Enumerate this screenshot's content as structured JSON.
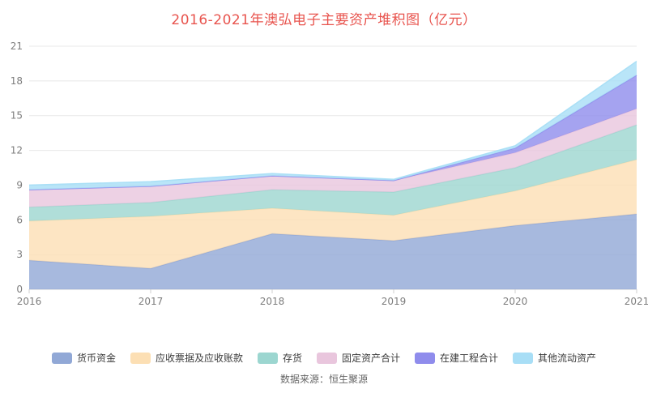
{
  "chart": {
    "title": "2016-2021年澳弘电子主要资产堆积图（亿元）",
    "title_color": "#e8544e",
    "source_note": "数据来源：恒生聚源"
  },
  "chart_data": {
    "type": "area",
    "stacked": true,
    "title": "2016-2021年澳弘电子主要资产堆积图（亿元）",
    "xlabel": "",
    "ylabel": "",
    "x": [
      "2016",
      "2017",
      "2018",
      "2019",
      "2020",
      "2021"
    ],
    "series": [
      {
        "name": "货币资金",
        "color": "#91a8d6",
        "values": [
          2.5,
          1.8,
          4.8,
          4.2,
          5.5,
          6.5
        ]
      },
      {
        "name": "应收票据及应收账款",
        "color": "#fcdfb4",
        "values": [
          3.4,
          4.5,
          2.2,
          2.2,
          3.0,
          4.7
        ]
      },
      {
        "name": "存货",
        "color": "#9cd6d0",
        "values": [
          1.2,
          1.2,
          1.6,
          2.0,
          2.0,
          3.0
        ]
      },
      {
        "name": "固定资产合计",
        "color": "#e9c6dd",
        "values": [
          1.5,
          1.4,
          1.2,
          1.0,
          1.3,
          1.4
        ]
      },
      {
        "name": "在建工程合计",
        "color": "#8f8cec",
        "values": [
          0.0,
          0.0,
          0.0,
          0.0,
          0.4,
          2.9
        ]
      },
      {
        "name": "其他流动资产",
        "color": "#a8def6",
        "values": [
          0.4,
          0.4,
          0.2,
          0.1,
          0.2,
          1.2
        ]
      }
    ],
    "ylim": [
      0,
      21
    ],
    "yticks": [
      0,
      3,
      6,
      9,
      12,
      15,
      18,
      21
    ],
    "grid": true,
    "legend_position": "bottom"
  }
}
